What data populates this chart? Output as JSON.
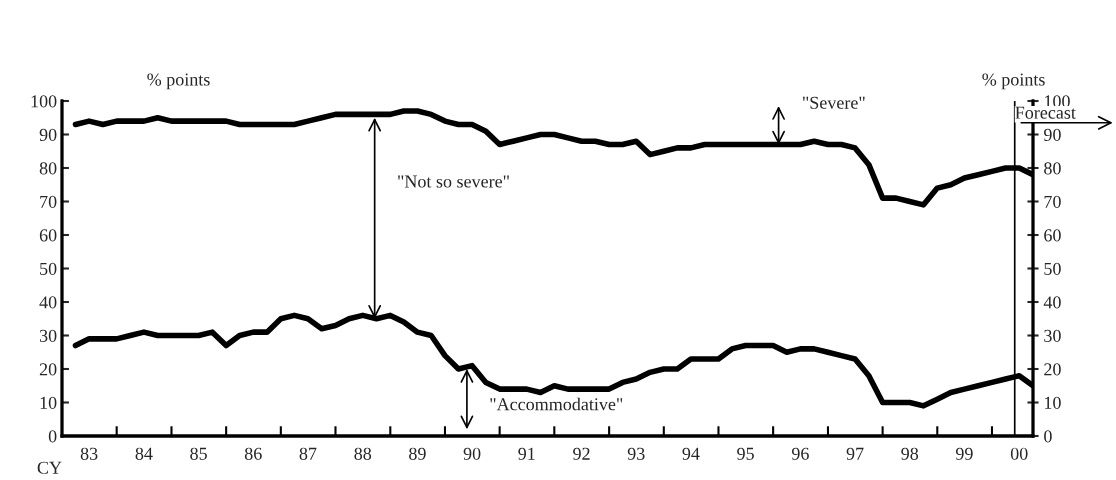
{
  "chart_data": {
    "type": "line",
    "xlabel": "CY",
    "ylabel": "% points",
    "y2label": "% points",
    "x": [
      "1983-04",
      "1983-07",
      "1983-10",
      "1984-01",
      "1984-04",
      "1984-07",
      "1984-10",
      "1985-01",
      "1985-04",
      "1985-07",
      "1985-10",
      "1986-01",
      "1986-04",
      "1986-07",
      "1986-10",
      "1987-01",
      "1987-04",
      "1987-07",
      "1987-10",
      "1988-01",
      "1988-04",
      "1988-07",
      "1988-10",
      "1989-01",
      "1989-04",
      "1989-07",
      "1989-10",
      "1990-01",
      "1990-04",
      "1990-07",
      "1990-10",
      "1991-01",
      "1991-04",
      "1991-07",
      "1991-10",
      "1992-01",
      "1992-04",
      "1992-07",
      "1992-10",
      "1993-01",
      "1993-04",
      "1993-07",
      "1993-10",
      "1994-01",
      "1994-04",
      "1994-07",
      "1994-10",
      "1995-01",
      "1995-04",
      "1995-07",
      "1995-10",
      "1996-01",
      "1996-04",
      "1996-07",
      "1996-10",
      "1997-01",
      "1997-04",
      "1997-07",
      "1997-10",
      "1998-01",
      "1998-04",
      "1998-07",
      "1998-10",
      "1999-01",
      "1999-04",
      "1999-07",
      "1999-10",
      "2000-01",
      "2000-04",
      "2000-07",
      "2000-10"
    ],
    "series": [
      {
        "color": "#000000",
        "values": [
          93,
          94,
          93,
          94,
          94,
          94,
          95,
          94,
          94,
          94,
          94,
          94,
          93,
          93,
          93,
          93,
          93,
          94,
          95,
          96,
          96,
          96,
          96,
          96,
          97,
          97,
          96,
          94,
          93,
          93,
          91,
          87,
          88,
          89,
          90,
          90,
          89,
          88,
          88,
          87,
          87,
          88,
          84,
          85,
          86,
          86,
          87,
          87,
          87,
          87,
          87,
          87,
          87,
          87,
          88,
          87,
          87,
          86,
          81,
          71,
          71,
          70,
          69,
          74,
          75,
          77,
          78,
          79,
          80,
          80,
          78
        ]
      },
      {
        "color": "#000000",
        "values": [
          27,
          29,
          29,
          29,
          30,
          31,
          30,
          30,
          30,
          30,
          31,
          27,
          30,
          31,
          31,
          35,
          36,
          35,
          32,
          33,
          35,
          36,
          35,
          36,
          34,
          31,
          30,
          24,
          20,
          21,
          16,
          14,
          14,
          14,
          13,
          15,
          14,
          14,
          14,
          14,
          16,
          17,
          19,
          20,
          20,
          23,
          23,
          23,
          26,
          27,
          27,
          27,
          25,
          26,
          26,
          25,
          24,
          23,
          18,
          10,
          10,
          10,
          9,
          11,
          13,
          14,
          15,
          16,
          17,
          18,
          15
        ]
      }
    ],
    "xlim": [
      "1983-01",
      "2000-10"
    ],
    "xticks": [
      {
        "value": "1983-07-01",
        "label": "83"
      },
      {
        "value": "1984",
        "label": null
      },
      {
        "value": "1984-07-01",
        "label": "84"
      },
      {
        "value": "1985",
        "label": null
      },
      {
        "value": "1985-07-01",
        "label": "85"
      },
      {
        "value": "1986",
        "label": null
      },
      {
        "value": "1986-07-01",
        "label": "86"
      },
      {
        "value": "1987",
        "label": null
      },
      {
        "value": "1987-07-01",
        "label": "87"
      },
      {
        "value": "1988",
        "label": null
      },
      {
        "value": "1988-07-01",
        "label": "88"
      },
      {
        "value": "1989",
        "label": null
      },
      {
        "value": "1989-07-01",
        "label": "89"
      },
      {
        "value": "1990",
        "label": null
      },
      {
        "value": "1990-07-01",
        "label": "90"
      },
      {
        "value": "1991",
        "label": null
      },
      {
        "value": "1991-07-01",
        "label": "91"
      },
      {
        "value": "1992",
        "label": null
      },
      {
        "value": "1992-07-01",
        "label": "92"
      },
      {
        "value": "1993",
        "label": null
      },
      {
        "value": "1993-07-01",
        "label": "93"
      },
      {
        "value": "1994",
        "label": null
      },
      {
        "value": "1994-07-01",
        "label": "94"
      },
      {
        "value": "1995",
        "label": null
      },
      {
        "value": "1995-07-01",
        "label": "95"
      },
      {
        "value": "1996",
        "label": null
      },
      {
        "value": "1996-07-01",
        "label": "96"
      },
      {
        "value": "1997",
        "label": null
      },
      {
        "value": "1997-07-01",
        "label": "97"
      },
      {
        "value": "1998",
        "label": null
      },
      {
        "value": "1998-07-01",
        "label": "98"
      },
      {
        "value": "1999",
        "label": null
      },
      {
        "value": "1999-07-01",
        "label": "99"
      },
      {
        "value": "2000",
        "label": null
      },
      {
        "value": "2000-07-01",
        "label": "00"
      }
    ],
    "ylim": [
      0,
      100
    ],
    "yticks": [
      0,
      10,
      20,
      30,
      40,
      50,
      60,
      70,
      80,
      90,
      100
    ],
    "y2lim": [
      0,
      100
    ],
    "y2ticks": [
      0,
      10,
      20,
      30,
      40,
      50,
      60,
      70,
      80,
      90,
      100
    ],
    "ref_lines": [
      {
        "axis": "x",
        "value": "2000-06",
        "label": "Forecast"
      }
    ],
    "annotations": [
      "\"Not so severe\"",
      "\"Severe\"",
      "\"Accommodative\""
    ],
    "grid": false,
    "marker": "none",
    "line_style": "solid"
  }
}
